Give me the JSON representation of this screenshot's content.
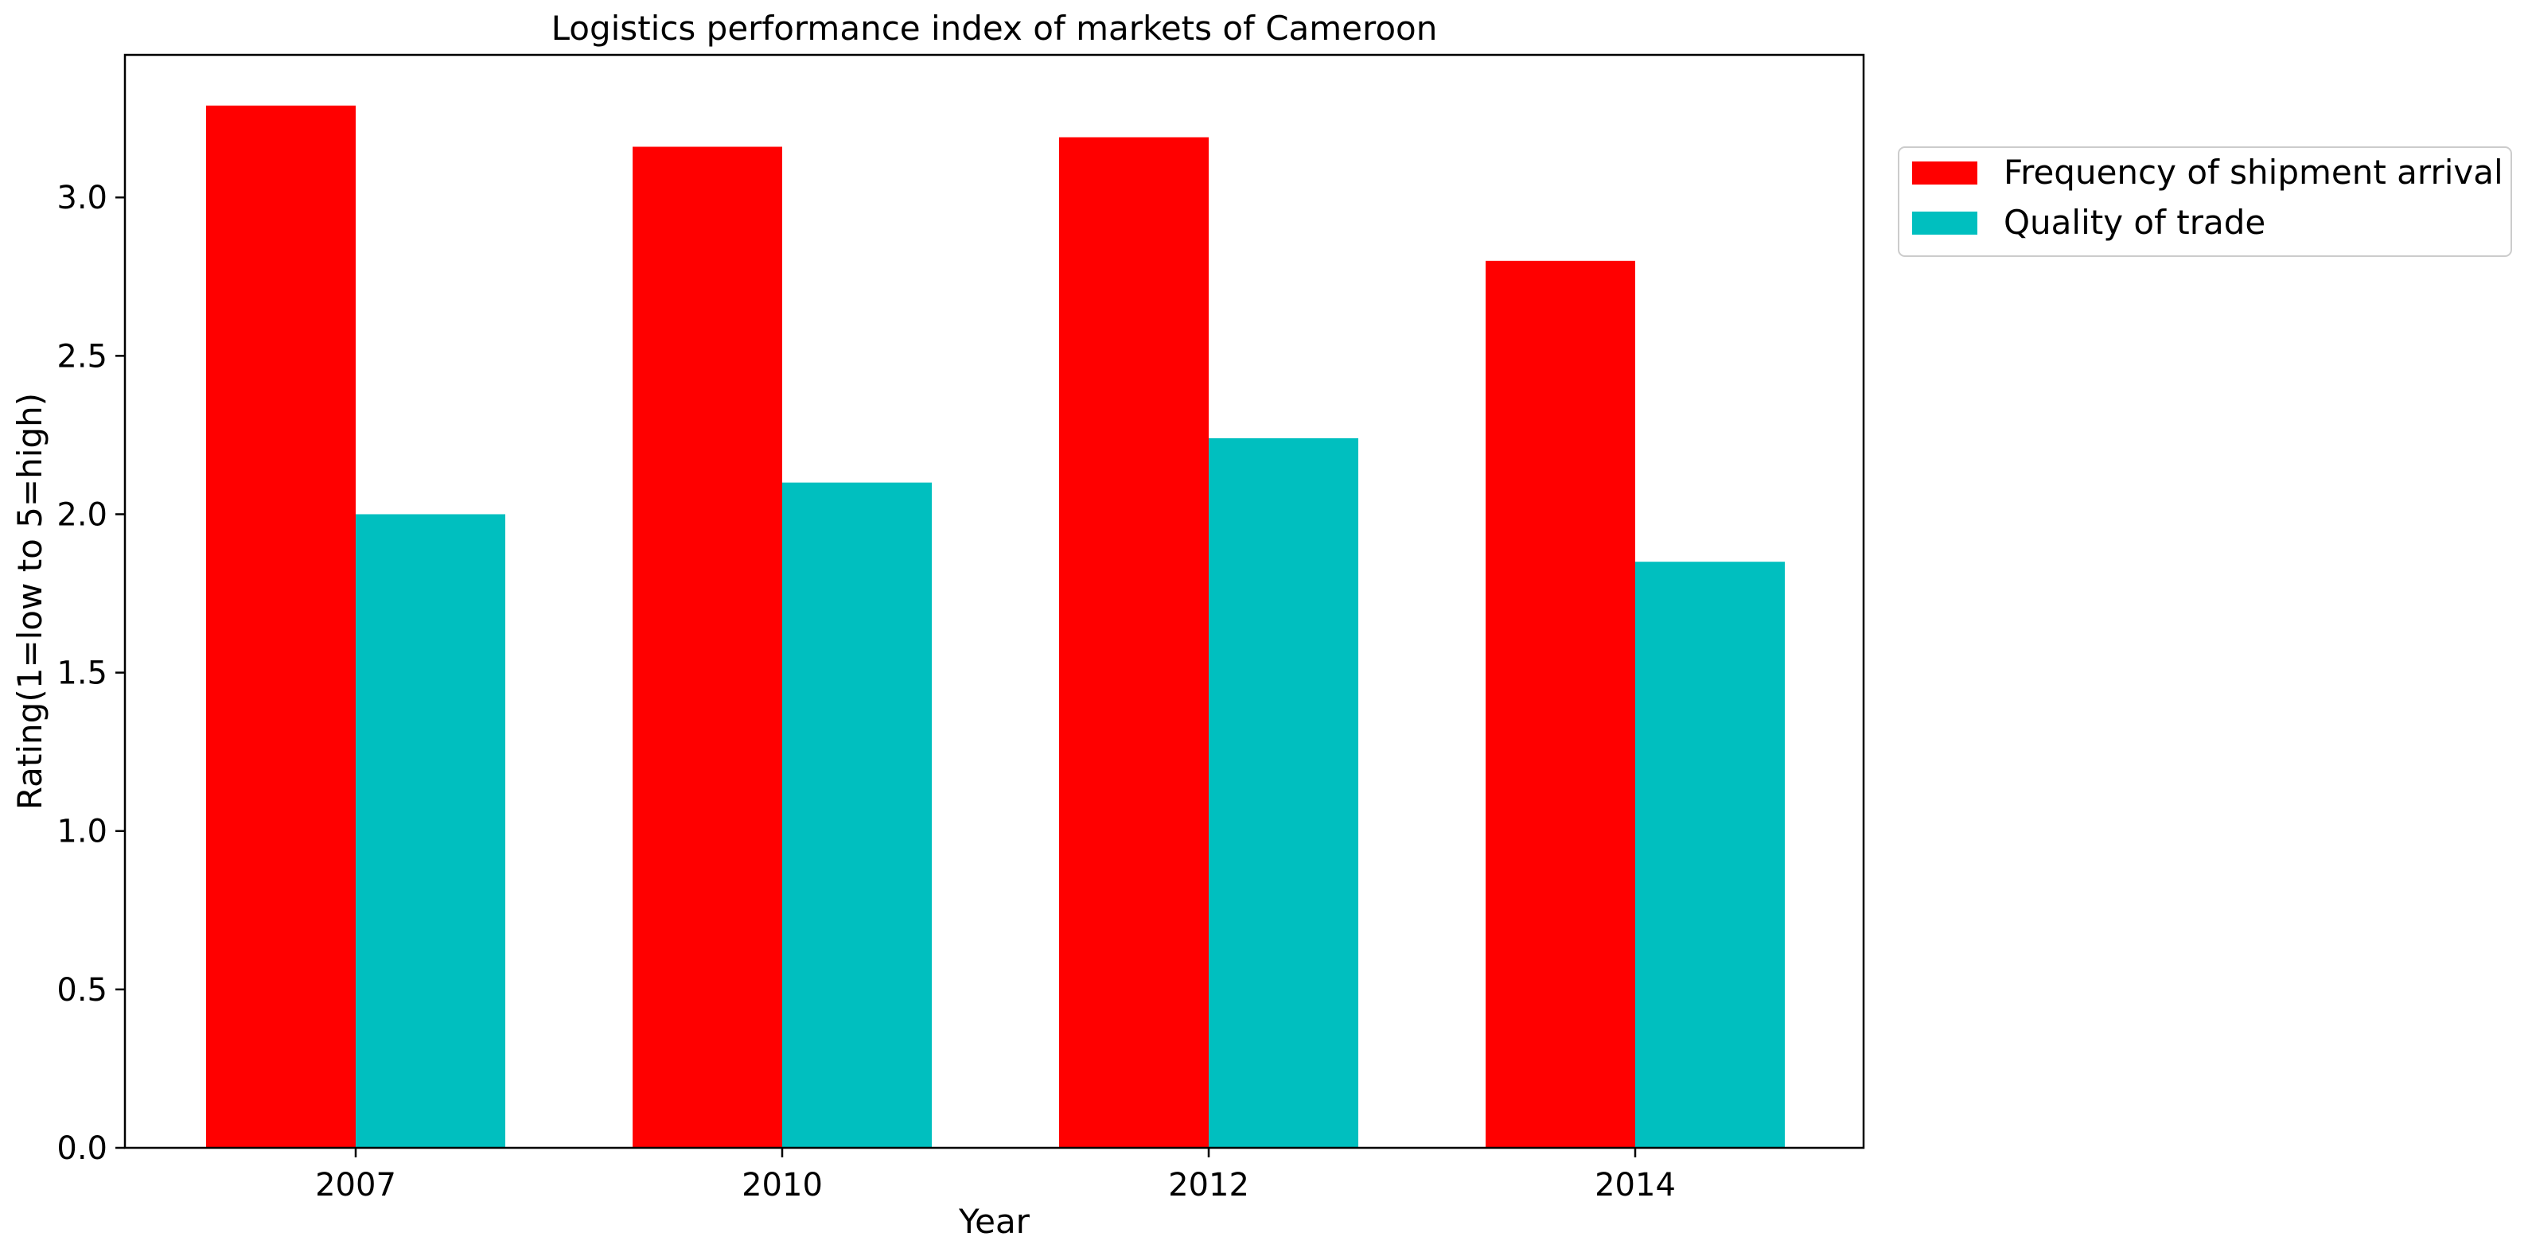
{
  "chart_data": {
    "type": "bar",
    "title": "Logistics performance index of markets of Cameroon",
    "xlabel": "Year",
    "ylabel": "Rating(1=low to 5=high)",
    "categories": [
      "2007",
      "2010",
      "2012",
      "2014"
    ],
    "series": [
      {
        "name": "Frequency of shipment arrival",
        "color": "#ff0000",
        "values": [
          3.29,
          3.16,
          3.19,
          2.8
        ]
      },
      {
        "name": "Quality of trade",
        "color": "#00bfbf",
        "values": [
          2.0,
          2.1,
          2.24,
          1.85
        ]
      }
    ],
    "ylim": [
      0,
      3.45
    ],
    "yticks": [
      "0.0",
      "0.5",
      "1.0",
      "1.5",
      "2.0",
      "2.5",
      "3.0"
    ],
    "grid": false,
    "legend_position": "outside top-right"
  }
}
